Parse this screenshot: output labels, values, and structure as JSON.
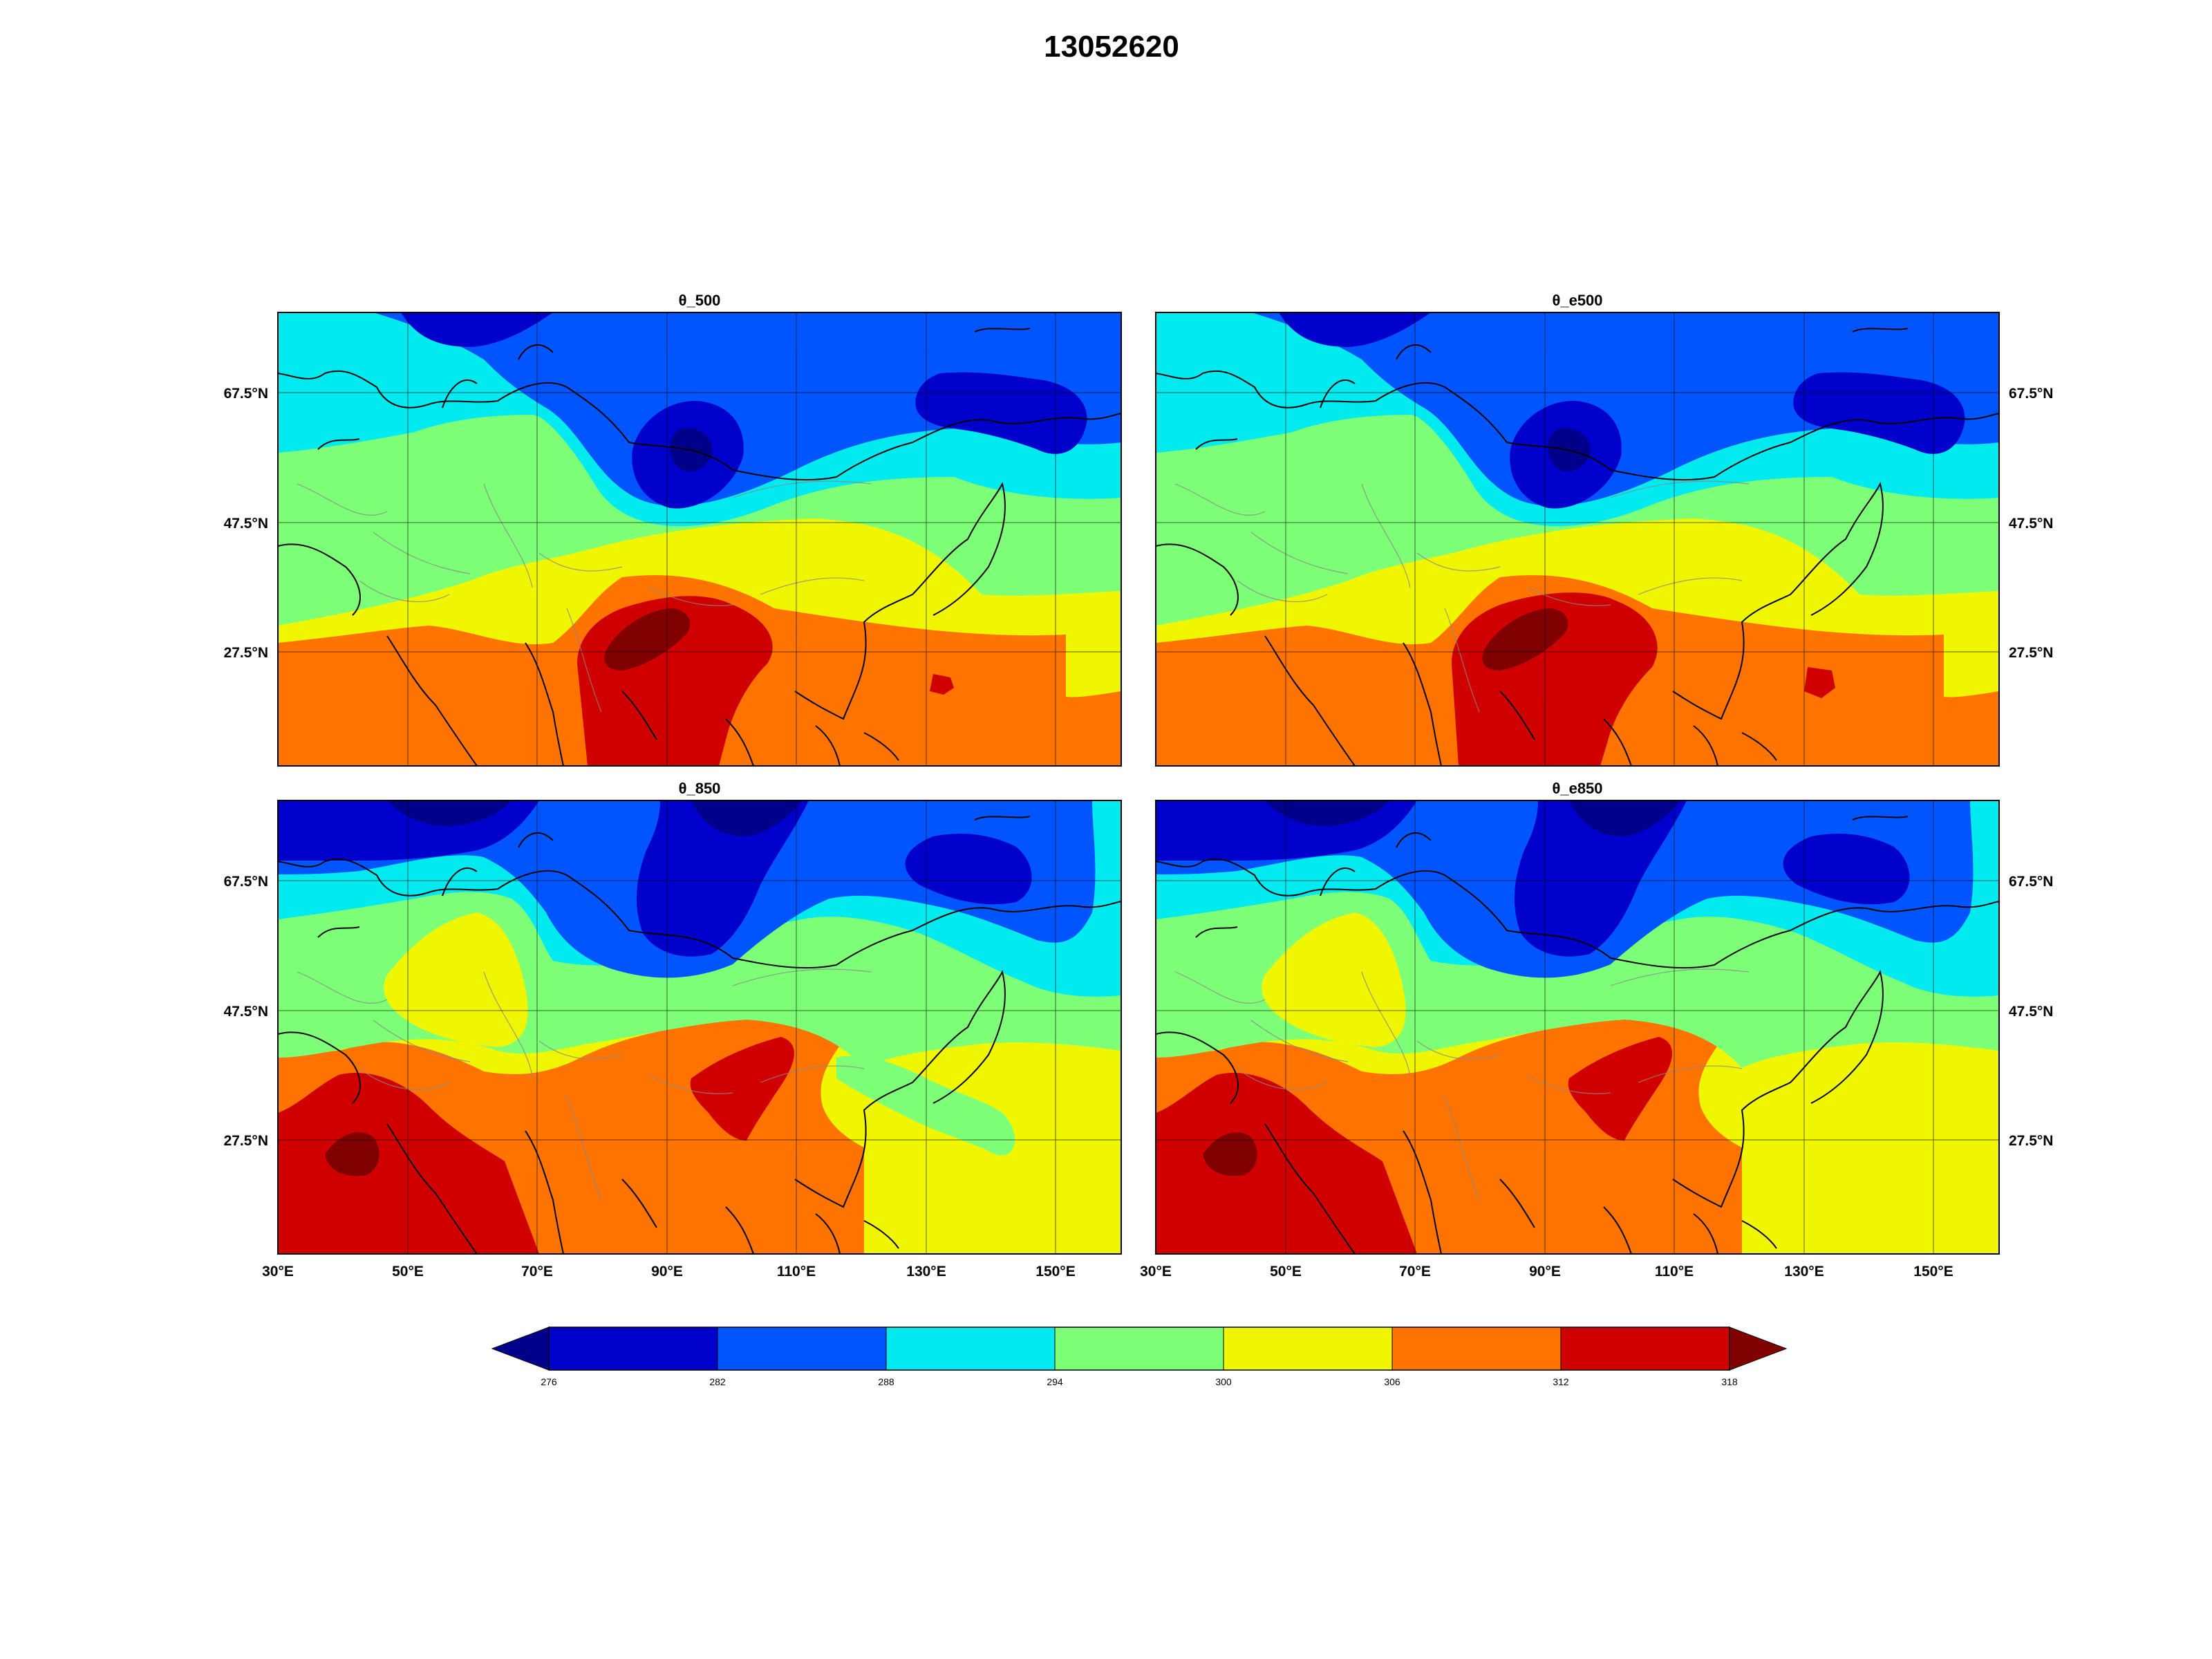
{
  "figure": {
    "title": "13052620"
  },
  "colors": {
    "levels": [
      {
        "from": null,
        "to": 276,
        "color": "#00008b"
      },
      {
        "from": 276,
        "to": 282,
        "color": "#0000cd"
      },
      {
        "from": 282,
        "to": 288,
        "color": "#0055ff"
      },
      {
        "from": 288,
        "to": 294,
        "color": "#00eaf0"
      },
      {
        "from": 294,
        "to": 300,
        "color": "#7dff78"
      },
      {
        "from": 300,
        "to": 306,
        "color": "#f0f500"
      },
      {
        "from": 306,
        "to": 312,
        "color": "#ff7400"
      },
      {
        "from": 312,
        "to": 318,
        "color": "#d00000"
      },
      {
        "from": 318,
        "to": null,
        "color": "#800000"
      }
    ],
    "coastline": "#000000",
    "borders": "#888888",
    "grid": "#000000"
  },
  "map": {
    "lon_range": [
      30,
      160
    ],
    "lat_range": [
      10,
      80
    ],
    "lon_ticks": [
      "30°E",
      "50°E",
      "70°E",
      "90°E",
      "110°E",
      "130°E",
      "150°E"
    ],
    "lat_ticks": [
      "27.5°N",
      "47.5°N",
      "67.5°N"
    ]
  },
  "panels": [
    {
      "id": "p1",
      "title": "θ_500"
    },
    {
      "id": "p2",
      "title": "θ_e500"
    },
    {
      "id": "p3",
      "title": "θ_850"
    },
    {
      "id": "p4",
      "title": "θ_e850"
    }
  ],
  "colorbar": {
    "tick_labels": [
      "276",
      "282",
      "288",
      "294",
      "300",
      "306",
      "312",
      "318"
    ]
  }
}
